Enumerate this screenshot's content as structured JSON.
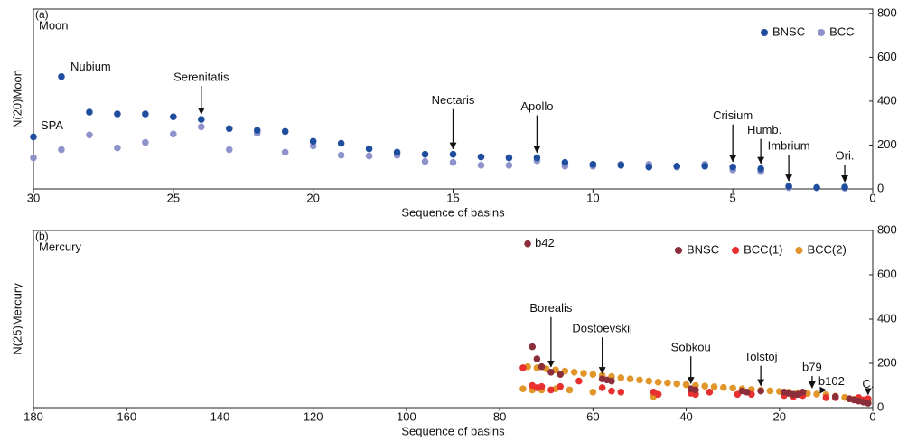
{
  "chart_data": [
    {
      "type": "scatter",
      "panel_label": "(a)",
      "title": "Moon",
      "xlabel": "Sequence of basins",
      "ylabel": "N(20)Moon",
      "xlim": [
        30,
        0
      ],
      "xticks": [
        30,
        25,
        20,
        15,
        10,
        5,
        0
      ],
      "ylim": [
        0,
        820
      ],
      "yticks": [
        0,
        200,
        400,
        600,
        800
      ],
      "y_axis_side": "right",
      "legend": "upper right",
      "series": [
        {
          "name": "BNSC",
          "color": "#1f4e9e",
          "x": [
            30,
            29,
            28,
            27,
            26,
            25,
            24,
            23,
            22,
            21,
            20,
            19,
            18,
            17,
            16,
            15,
            14,
            13,
            12,
            11,
            10,
            9,
            8,
            7,
            6,
            5,
            4,
            3,
            2,
            1
          ],
          "values": [
            237,
            512,
            350,
            342,
            342,
            329,
            317,
            275,
            267,
            262,
            217,
            208,
            183,
            167,
            158,
            158,
            146,
            142,
            142,
            121,
            112,
            108,
            100,
            104,
            104,
            100,
            92,
            12,
            6,
            8
          ]
        },
        {
          "name": "BCC",
          "color": "#8f93cc",
          "x": [
            30,
            29,
            28,
            27,
            26,
            25,
            24,
            23,
            22,
            21,
            20,
            19,
            18,
            17,
            16,
            15,
            14,
            13,
            12,
            11,
            10,
            9,
            8,
            7,
            6,
            5,
            4,
            3,
            2,
            1
          ],
          "values": [
            142,
            179,
            246,
            187,
            212,
            250,
            283,
            179,
            254,
            167,
            196,
            154,
            150,
            154,
            125,
            121,
            108,
            108,
            129,
            104,
            104,
            112,
            112,
            100,
            112,
            87,
            79,
            6,
            6,
            4
          ]
        }
      ],
      "annotations": [
        {
          "text": "SPA",
          "x": 30,
          "y": 237,
          "arrow": false
        },
        {
          "text": "Nubium",
          "x": 29,
          "y": 512,
          "arrow": false
        },
        {
          "text": "Serenitatis",
          "x": 24,
          "y": 317,
          "arrow": true
        },
        {
          "text": "Nectaris",
          "x": 15,
          "y": 158,
          "arrow": true
        },
        {
          "text": "Apollo",
          "x": 12,
          "y": 142,
          "arrow": true
        },
        {
          "text": "Crisium",
          "x": 5,
          "y": 100,
          "arrow": true
        },
        {
          "text": "Humb.",
          "x": 4,
          "y": 92,
          "arrow": true
        },
        {
          "text": "Imbrium",
          "x": 3,
          "y": 12,
          "arrow": true
        },
        {
          "text": "Ori.",
          "x": 1,
          "y": 8,
          "arrow": true
        }
      ]
    },
    {
      "type": "scatter",
      "panel_label": "(b)",
      "title": "Mercury",
      "xlabel": "Sequence of basins",
      "ylabel": "N(25)Mercury",
      "xlim": [
        180,
        0
      ],
      "xticks": [
        180,
        160,
        140,
        120,
        100,
        80,
        60,
        40,
        20,
        0
      ],
      "ylim": [
        0,
        800
      ],
      "yticks": [
        0,
        200,
        400,
        600,
        800
      ],
      "y_axis_side": "right",
      "legend": "upper right",
      "series": [
        {
          "name": "BNSC",
          "color": "#8b2e3c",
          "x": [
            74,
            73,
            72,
            71,
            69,
            67,
            58,
            57,
            56,
            39,
            38,
            28,
            27,
            24,
            19,
            18,
            17,
            16,
            15,
            8,
            5,
            4,
            3,
            2,
            1
          ],
          "values": [
            740,
            275,
            220,
            185,
            160,
            150,
            130,
            125,
            120,
            85,
            80,
            75,
            70,
            75,
            70,
            65,
            60,
            60,
            70,
            50,
            40,
            35,
            30,
            25,
            20
          ]
        },
        {
          "name": "BCC(1)",
          "color": "#e83030",
          "x": [
            75,
            73,
            72,
            71,
            69,
            67,
            63,
            58,
            56,
            54,
            47,
            46,
            39,
            38,
            35,
            29,
            26,
            19,
            17,
            15,
            10,
            8,
            5,
            4,
            3,
            2,
            1
          ],
          "values": [
            180,
            100,
            90,
            95,
            80,
            95,
            120,
            90,
            75,
            70,
            70,
            60,
            65,
            60,
            70,
            60,
            60,
            55,
            50,
            55,
            45,
            45,
            40,
            35,
            45,
            35,
            40
          ]
        },
        {
          "name": "BCC(2)",
          "color": "#e0962a",
          "x": [
            74,
            72,
            70,
            68,
            66,
            64,
            62,
            60,
            58,
            56,
            54,
            52,
            50,
            48,
            46,
            44,
            42,
            40,
            38,
            36,
            34,
            32,
            30,
            28,
            26,
            24,
            22,
            20,
            18,
            16,
            14,
            12,
            10,
            8,
            6,
            4,
            2,
            1,
            75,
            73,
            71,
            68,
            65,
            60,
            47,
            46,
            38
          ],
          "values": [
            185,
            180,
            175,
            170,
            165,
            160,
            155,
            150,
            145,
            140,
            135,
            130,
            125,
            120,
            115,
            112,
            108,
            104,
            100,
            97,
            94,
            91,
            88,
            85,
            82,
            79,
            76,
            73,
            70,
            67,
            64,
            61,
            58,
            52,
            46,
            38,
            30,
            25,
            85,
            80,
            80,
            85,
            80,
            70,
            50,
            60,
            60
          ]
        }
      ],
      "annotations": [
        {
          "text": "b42",
          "x": 74,
          "y": 740,
          "arrow": false
        },
        {
          "text": "Borealis",
          "x": 69,
          "y": 160,
          "arrow": true
        },
        {
          "text": "Dostoevskij",
          "x": 58,
          "y": 130,
          "arrow": true
        },
        {
          "text": "Sobkou",
          "x": 39,
          "y": 85,
          "arrow": true
        },
        {
          "text": "Tolstoj",
          "x": 24,
          "y": 75,
          "arrow": true
        },
        {
          "text": "b79",
          "x": 13,
          "y": 65,
          "arrow": true
        },
        {
          "text": "b102",
          "x": 10,
          "y": 55,
          "arrow": true
        },
        {
          "text": "C.",
          "x": 1,
          "y": 35,
          "arrow": true
        }
      ]
    }
  ]
}
